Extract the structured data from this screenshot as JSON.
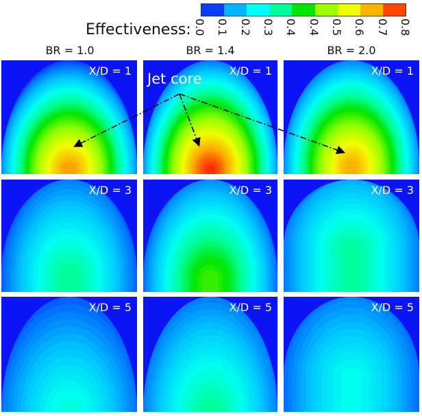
{
  "chart_data": {
    "type": "heatmap",
    "colorbar": {
      "label": "Effectiveness:",
      "ticks": [
        "0.0",
        "0.1",
        "0.2",
        "0.3",
        "0.4",
        "0.4",
        "0.5",
        "0.6",
        "0.7",
        "0.8"
      ],
      "colors": [
        "#0a40f5",
        "#00b4ff",
        "#00ffff",
        "#00ff9c",
        "#00e600",
        "#9cff00",
        "#f0ff00",
        "#ffb400",
        "#ff4600"
      ]
    },
    "background_color": "#0a14f5",
    "columns": [
      "BR = 1.0",
      "BR = 1.4",
      "BR = 2.0"
    ],
    "rows": [
      "X/D = 1",
      "X/D = 3",
      "X/D = 5"
    ],
    "peak_effectiveness": [
      [
        0.72,
        0.8,
        0.7
      ],
      [
        0.33,
        0.45,
        0.32
      ],
      [
        0.27,
        0.33,
        0.25
      ]
    ],
    "annotation": "Jet core"
  }
}
